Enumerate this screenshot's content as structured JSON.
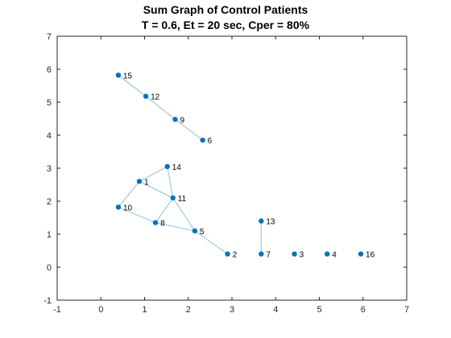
{
  "chart_data": {
    "type": "scatter",
    "title_lines": [
      "Sum Graph of Control Patients",
      "T = 0.6, Et = 20 sec, Cper = 80%"
    ],
    "xlabel": "",
    "ylabel": "",
    "xlim": [
      -1,
      7
    ],
    "ylim": [
      -1,
      7
    ],
    "xticks": [
      -1,
      0,
      1,
      2,
      3,
      4,
      5,
      6,
      7
    ],
    "yticks": [
      -1,
      0,
      1,
      2,
      3,
      4,
      5,
      6,
      7
    ],
    "grid": false,
    "nodes": [
      {
        "id": "1",
        "x": 0.88,
        "y": 2.6
      },
      {
        "id": "2",
        "x": 2.9,
        "y": 0.4
      },
      {
        "id": "3",
        "x": 4.43,
        "y": 0.4
      },
      {
        "id": "4",
        "x": 5.18,
        "y": 0.4
      },
      {
        "id": "5",
        "x": 2.15,
        "y": 1.1
      },
      {
        "id": "6",
        "x": 2.33,
        "y": 3.85
      },
      {
        "id": "7",
        "x": 3.67,
        "y": 0.4
      },
      {
        "id": "8",
        "x": 1.25,
        "y": 1.35
      },
      {
        "id": "9",
        "x": 1.7,
        "y": 4.48
      },
      {
        "id": "10",
        "x": 0.4,
        "y": 1.82
      },
      {
        "id": "11",
        "x": 1.65,
        "y": 2.1
      },
      {
        "id": "12",
        "x": 1.03,
        "y": 5.18
      },
      {
        "id": "13",
        "x": 3.67,
        "y": 1.4
      },
      {
        "id": "14",
        "x": 1.52,
        "y": 3.05
      },
      {
        "id": "15",
        "x": 0.4,
        "y": 5.82
      },
      {
        "id": "16",
        "x": 5.95,
        "y": 0.4
      }
    ],
    "edges": [
      [
        "15",
        "12"
      ],
      [
        "12",
        "9"
      ],
      [
        "9",
        "6"
      ],
      [
        "14",
        "1"
      ],
      [
        "14",
        "11"
      ],
      [
        "1",
        "11"
      ],
      [
        "1",
        "10"
      ],
      [
        "10",
        "8"
      ],
      [
        "8",
        "11"
      ],
      [
        "11",
        "5"
      ],
      [
        "8",
        "5"
      ],
      [
        "5",
        "2"
      ],
      [
        "13",
        "7"
      ]
    ],
    "colors": {
      "node": "#0072bd",
      "edge": "#9ec8ea",
      "axis": "#262626",
      "label": "#000000"
    }
  }
}
